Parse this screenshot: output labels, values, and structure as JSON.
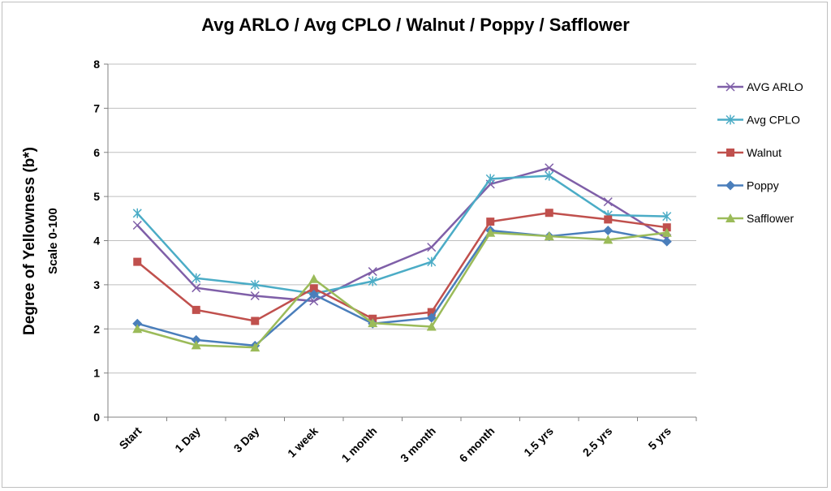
{
  "chart_data": {
    "type": "line",
    "title": "Avg ARLO / Avg CPLO / Walnut / Poppy / Safflower",
    "ylabel": "Degree  of  Yellowness (b*)",
    "ylabel_sub": "Scale 0-100",
    "xlabel": "",
    "ylim": [
      0,
      8
    ],
    "yticks": [
      "0",
      "1",
      "2",
      "3",
      "4",
      "5",
      "6",
      "7",
      "8"
    ],
    "grid": true,
    "legend_position": "right",
    "categories": [
      "Start",
      "1 Day",
      "3 Day",
      "1 week",
      "1 month",
      "3 month",
      "6 month",
      "1.5 yrs",
      "2.5 yrs",
      "5 yrs"
    ],
    "series": [
      {
        "name": "AVG ARLO",
        "color": "#7f5fa8",
        "marker": "x",
        "values": [
          4.35,
          2.93,
          2.75,
          2.63,
          3.3,
          3.85,
          5.28,
          5.65,
          4.88,
          4.05
        ]
      },
      {
        "name": "Avg CPLO",
        "color": "#4bacc6",
        "marker": "star",
        "values": [
          4.62,
          3.15,
          3.0,
          2.8,
          3.08,
          3.52,
          5.4,
          5.47,
          4.58,
          4.55
        ]
      },
      {
        "name": "Walnut",
        "color": "#c0504d",
        "marker": "square",
        "values": [
          3.52,
          2.43,
          2.18,
          2.92,
          2.23,
          2.38,
          4.43,
          4.63,
          4.48,
          4.3
        ]
      },
      {
        "name": "Poppy",
        "color": "#4a7ebb",
        "marker": "diamond",
        "values": [
          2.12,
          1.75,
          1.62,
          2.78,
          2.12,
          2.25,
          4.23,
          4.1,
          4.23,
          3.98
        ]
      },
      {
        "name": "Safflower",
        "color": "#9bbb59",
        "marker": "triangle",
        "values": [
          2.0,
          1.63,
          1.58,
          3.13,
          2.13,
          2.05,
          4.18,
          4.1,
          4.02,
          4.18
        ]
      }
    ]
  }
}
